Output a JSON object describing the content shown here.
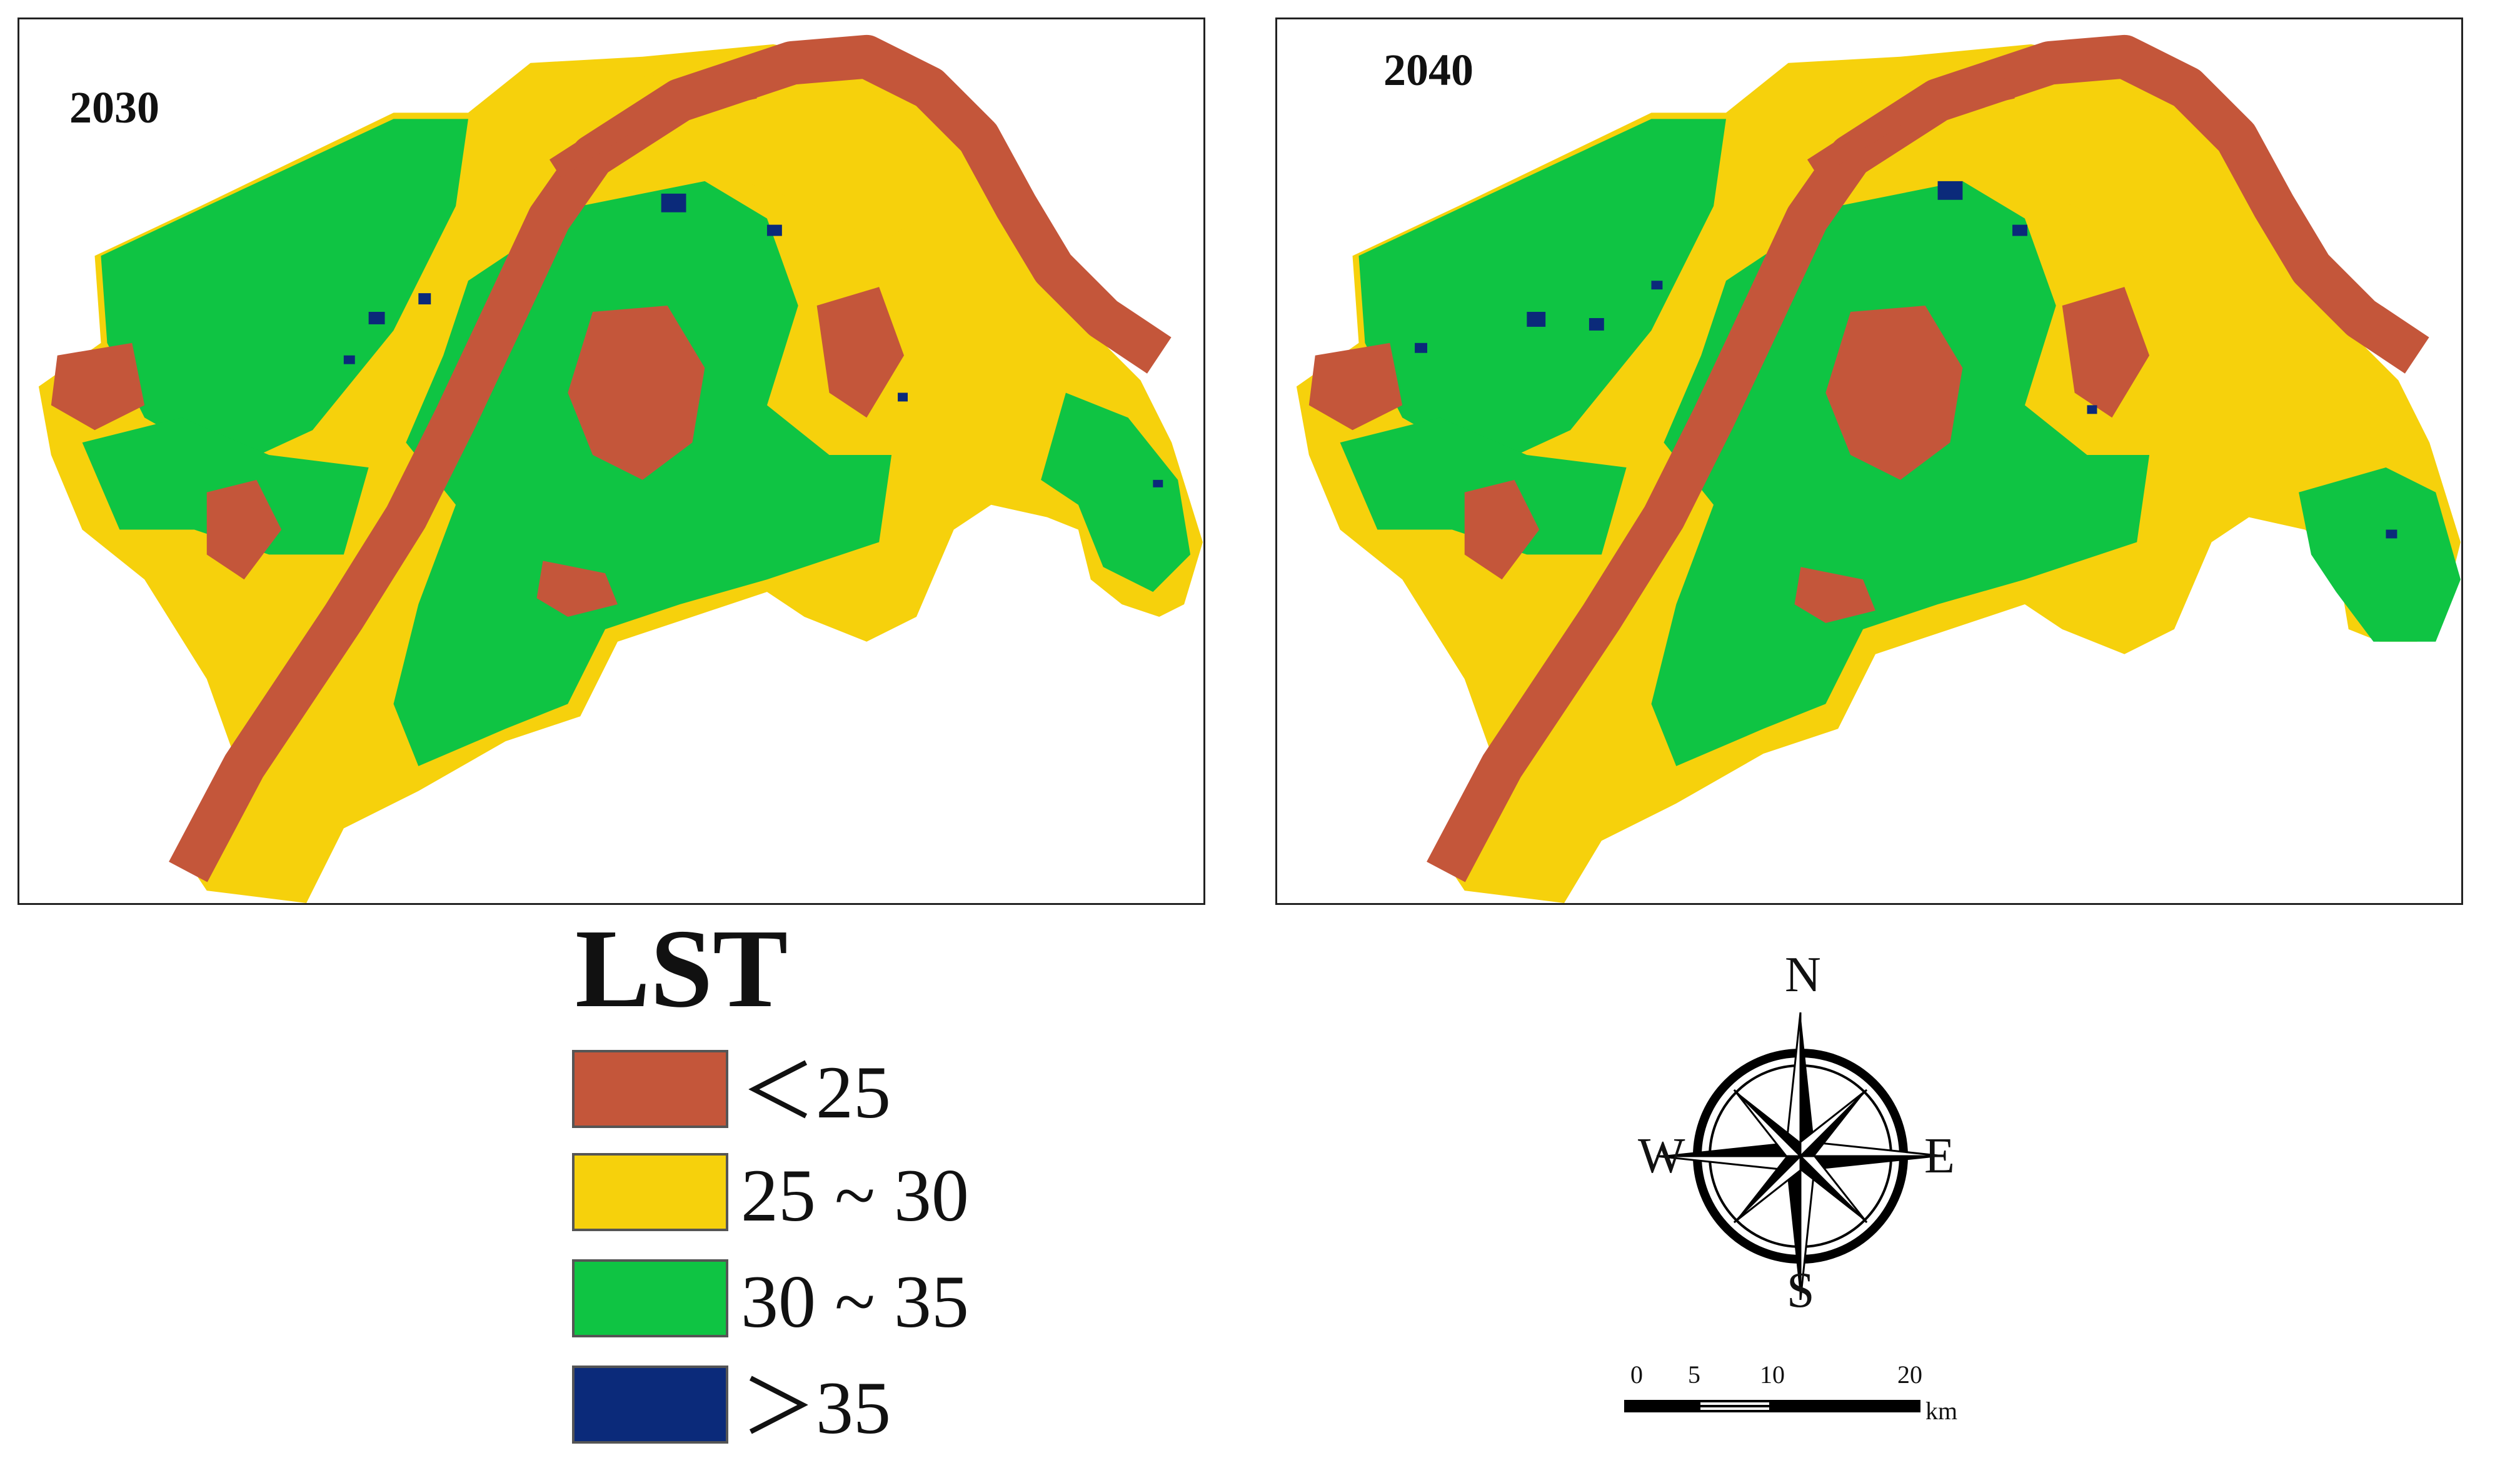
{
  "maps": [
    {
      "year": "2030"
    },
    {
      "year": "2040"
    }
  ],
  "colors": {
    "lt25": "#C4563A",
    "c25_30": "#F6D10C",
    "c30_35": "#0FC443",
    "gt35": "#0B2A7A",
    "river": "#C4563A"
  },
  "legend": {
    "title": "LST",
    "items": [
      {
        "label": "＜25",
        "color": "#C4563A"
      },
      {
        "label": "25 ~ 30",
        "color": "#F6D10C"
      },
      {
        "label": "30 ~ 35",
        "color": "#0FC443"
      },
      {
        "label": "＞35",
        "color": "#0B2A7A"
      }
    ]
  },
  "compass": {
    "n": "N",
    "s": "S",
    "e": "E",
    "w": "W"
  },
  "scale": {
    "ticks": [
      "0",
      "5",
      "10",
      "20"
    ],
    "unit": "km"
  }
}
